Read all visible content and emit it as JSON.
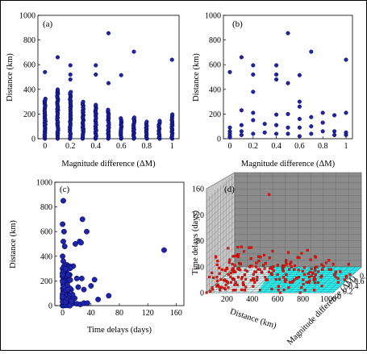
{
  "colors": {
    "marker_fill": "#1f25a8",
    "marker_edge": "#000055",
    "red_marker": "#e8140c",
    "wall_grey": "#8c8c8c",
    "floor_cyan": "#33ffff"
  },
  "chart_data": [
    {
      "type": "scatter",
      "panel_label": "(a)",
      "xlabel": "Magnitude difference (ΔM)",
      "ylabel": "Distance (km)",
      "xlim": [
        0,
        1
      ],
      "ylim": [
        0,
        1000
      ],
      "xticks": [
        "0",
        "0.2",
        "0.4",
        "0.6",
        "0.8",
        "1"
      ],
      "yticks": [
        "0",
        "200",
        "400",
        "600",
        "800",
        "1000"
      ],
      "grid": false,
      "columns": [
        {
          "x": 0.0,
          "max": 330
        },
        {
          "x": 0.1,
          "max": 400
        },
        {
          "x": 0.2,
          "max": 380
        },
        {
          "x": 0.3,
          "max": 300
        },
        {
          "x": 0.4,
          "max": 280
        },
        {
          "x": 0.5,
          "max": 240
        },
        {
          "x": 0.6,
          "max": 170
        },
        {
          "x": 0.7,
          "max": 180
        },
        {
          "x": 0.8,
          "max": 140
        },
        {
          "x": 0.9,
          "max": 150
        },
        {
          "x": 1.0,
          "max": 200
        }
      ],
      "outliers": [
        {
          "x": 0.0,
          "y": 540
        },
        {
          "x": 0.1,
          "y": 660
        },
        {
          "x": 0.2,
          "y": 595
        },
        {
          "x": 0.2,
          "y": 520
        },
        {
          "x": 0.2,
          "y": 480
        },
        {
          "x": 0.4,
          "y": 595
        },
        {
          "x": 0.4,
          "y": 520
        },
        {
          "x": 0.5,
          "y": 855
        },
        {
          "x": 0.5,
          "y": 450
        },
        {
          "x": 0.6,
          "y": 515
        },
        {
          "x": 0.7,
          "y": 705
        },
        {
          "x": 1.0,
          "y": 640
        }
      ]
    },
    {
      "type": "scatter",
      "panel_label": "(b)",
      "xlabel": "Magnitude difference (ΔM)",
      "ylabel": "Distance (km)",
      "xlim": [
        0,
        1
      ],
      "ylim": [
        0,
        1000
      ],
      "xticks": [
        "0",
        "0.2",
        "0.4",
        "0.6",
        "0.8",
        "1"
      ],
      "yticks": [
        "0",
        "200",
        "400",
        "600",
        "800",
        "1000"
      ],
      "grid": false,
      "points": [
        {
          "x": 0.0,
          "y": 540
        },
        {
          "x": 0.0,
          "y": 90
        },
        {
          "x": 0.0,
          "y": 60
        },
        {
          "x": 0.0,
          "y": 40
        },
        {
          "x": 0.0,
          "y": 20
        },
        {
          "x": 0.0,
          "y": 10
        },
        {
          "x": 0.1,
          "y": 660
        },
        {
          "x": 0.1,
          "y": 230
        },
        {
          "x": 0.1,
          "y": 110
        },
        {
          "x": 0.1,
          "y": 60
        },
        {
          "x": 0.1,
          "y": 30
        },
        {
          "x": 0.2,
          "y": 595
        },
        {
          "x": 0.2,
          "y": 520
        },
        {
          "x": 0.2,
          "y": 380
        },
        {
          "x": 0.2,
          "y": 210
        },
        {
          "x": 0.2,
          "y": 150
        },
        {
          "x": 0.2,
          "y": 40
        },
        {
          "x": 0.3,
          "y": 120
        },
        {
          "x": 0.3,
          "y": 50
        },
        {
          "x": 0.4,
          "y": 595
        },
        {
          "x": 0.4,
          "y": 520
        },
        {
          "x": 0.4,
          "y": 480
        },
        {
          "x": 0.4,
          "y": 195
        },
        {
          "x": 0.4,
          "y": 110
        },
        {
          "x": 0.4,
          "y": 40
        },
        {
          "x": 0.5,
          "y": 855
        },
        {
          "x": 0.5,
          "y": 450
        },
        {
          "x": 0.5,
          "y": 200
        },
        {
          "x": 0.5,
          "y": 90
        },
        {
          "x": 0.5,
          "y": 40
        },
        {
          "x": 0.6,
          "y": 515
        },
        {
          "x": 0.6,
          "y": 300
        },
        {
          "x": 0.6,
          "y": 260
        },
        {
          "x": 0.6,
          "y": 160
        },
        {
          "x": 0.6,
          "y": 90
        },
        {
          "x": 0.6,
          "y": 20
        },
        {
          "x": 0.7,
          "y": 705
        },
        {
          "x": 0.7,
          "y": 175
        },
        {
          "x": 0.7,
          "y": 100
        },
        {
          "x": 0.7,
          "y": 40
        },
        {
          "x": 0.8,
          "y": 210
        },
        {
          "x": 0.8,
          "y": 130
        },
        {
          "x": 0.8,
          "y": 60
        },
        {
          "x": 0.9,
          "y": 190
        },
        {
          "x": 0.9,
          "y": 60
        },
        {
          "x": 0.9,
          "y": 30
        },
        {
          "x": 1.0,
          "y": 640
        },
        {
          "x": 1.0,
          "y": 210
        },
        {
          "x": 1.0,
          "y": 50
        },
        {
          "x": 1.0,
          "y": 30
        }
      ]
    },
    {
      "type": "scatter",
      "panel_label": "(c)",
      "xlabel": "Time delays (days)",
      "ylabel": "Distance (km)",
      "xlim": [
        0,
        160
      ],
      "ylim": [
        0,
        1000
      ],
      "xticks": [
        "0",
        "40",
        "80",
        "120",
        "160"
      ],
      "yticks": [
        "0",
        "200",
        "400",
        "600",
        "800",
        "1000"
      ],
      "grid": false,
      "points": [
        {
          "x": 1,
          "y": 850
        },
        {
          "x": 0,
          "y": 660
        },
        {
          "x": 2,
          "y": 600
        },
        {
          "x": 1,
          "y": 520
        },
        {
          "x": 3,
          "y": 480
        },
        {
          "x": 0,
          "y": 400
        },
        {
          "x": 1,
          "y": 360
        },
        {
          "x": 2,
          "y": 320
        },
        {
          "x": 0,
          "y": 300
        },
        {
          "x": 1,
          "y": 280
        },
        {
          "x": 3,
          "y": 250
        },
        {
          "x": 2,
          "y": 220
        },
        {
          "x": 0,
          "y": 200
        },
        {
          "x": 4,
          "y": 190
        },
        {
          "x": 1,
          "y": 170
        },
        {
          "x": 5,
          "y": 150
        },
        {
          "x": 2,
          "y": 140
        },
        {
          "x": 6,
          "y": 120
        },
        {
          "x": 3,
          "y": 100
        },
        {
          "x": 8,
          "y": 90
        },
        {
          "x": 0,
          "y": 80
        },
        {
          "x": 10,
          "y": 70
        },
        {
          "x": 4,
          "y": 60
        },
        {
          "x": 12,
          "y": 40
        },
        {
          "x": 2,
          "y": 30
        },
        {
          "x": 15,
          "y": 20
        },
        {
          "x": 7,
          "y": 10
        },
        {
          "x": 20,
          "y": 15
        },
        {
          "x": 25,
          "y": 10
        },
        {
          "x": 30,
          "y": 20
        },
        {
          "x": 35,
          "y": 20
        },
        {
          "x": 28,
          "y": 700
        },
        {
          "x": 24,
          "y": 520
        },
        {
          "x": 26,
          "y": 510
        },
        {
          "x": 34,
          "y": 600
        },
        {
          "x": 18,
          "y": 500
        },
        {
          "x": 15,
          "y": 320
        },
        {
          "x": 20,
          "y": 220
        },
        {
          "x": 27,
          "y": 220
        },
        {
          "x": 22,
          "y": 150
        },
        {
          "x": 30,
          "y": 130
        },
        {
          "x": 45,
          "y": 210
        },
        {
          "x": 40,
          "y": 160
        },
        {
          "x": 50,
          "y": 50
        },
        {
          "x": 65,
          "y": 80
        },
        {
          "x": 143,
          "y": 450
        },
        {
          "x": 10,
          "y": 250
        },
        {
          "x": 8,
          "y": 200
        },
        {
          "x": 6,
          "y": 330
        },
        {
          "x": 12,
          "y": 130
        },
        {
          "x": 17,
          "y": 60
        },
        {
          "x": 9,
          "y": 40
        },
        {
          "x": 14,
          "y": 90
        }
      ]
    },
    {
      "type": "scatter",
      "panel_label": "(d)",
      "projection": "3d",
      "xlabel": "Distance (km)",
      "ylabel": "Magnitude difference (ΔM)",
      "zlabel": "Time delays (days)",
      "xlim": [
        0,
        1000
      ],
      "ylim": [
        0,
        1
      ],
      "zlim": [
        0,
        160
      ],
      "xticks": [
        "0",
        "200",
        "400",
        "600",
        "800",
        "1000"
      ],
      "yticks": [
        "0",
        "0.2",
        "0.4",
        "0.6",
        "0.8",
        "1"
      ],
      "zticks": [
        "0",
        "40",
        "80",
        "120",
        "160"
      ],
      "grid": true,
      "points": [
        {
          "x": 30,
          "y": 0.0,
          "z": 2
        },
        {
          "x": 80,
          "y": 0.0,
          "z": 10
        },
        {
          "x": 150,
          "y": 0.0,
          "z": 5
        },
        {
          "x": 60,
          "y": 0.1,
          "z": 20
        },
        {
          "x": 120,
          "y": 0.1,
          "z": 3
        },
        {
          "x": 200,
          "y": 0.1,
          "z": 8
        },
        {
          "x": 40,
          "y": 0.2,
          "z": 35
        },
        {
          "x": 100,
          "y": 0.2,
          "z": 12
        },
        {
          "x": 250,
          "y": 0.2,
          "z": 4
        },
        {
          "x": 300,
          "y": 0.3,
          "z": 10
        },
        {
          "x": 180,
          "y": 0.3,
          "z": 25
        },
        {
          "x": 90,
          "y": 0.3,
          "z": 6
        },
        {
          "x": 350,
          "y": 0.4,
          "z": 15
        },
        {
          "x": 220,
          "y": 0.4,
          "z": 5
        },
        {
          "x": 120,
          "y": 0.4,
          "z": 40
        },
        {
          "x": 450,
          "y": 0.5,
          "z": 8
        },
        {
          "x": 280,
          "y": 0.5,
          "z": 20
        },
        {
          "x": 600,
          "y": 0.5,
          "z": 3
        },
        {
          "x": 520,
          "y": 0.6,
          "z": 12
        },
        {
          "x": 380,
          "y": 0.6,
          "z": 6
        },
        {
          "x": 700,
          "y": 0.7,
          "z": 10
        },
        {
          "x": 300,
          "y": 0.7,
          "z": 30
        },
        {
          "x": 650,
          "y": 0.8,
          "z": 5
        },
        {
          "x": 450,
          "y": 0.8,
          "z": 18
        },
        {
          "x": 800,
          "y": 0.9,
          "z": 8
        },
        {
          "x": 550,
          "y": 0.9,
          "z": 25
        },
        {
          "x": 900,
          "y": 1.0,
          "z": 4
        },
        {
          "x": 640,
          "y": 1.0,
          "z": 15
        },
        {
          "x": 500,
          "y": 0.1,
          "z": 60
        },
        {
          "x": 855,
          "y": 0.5,
          "z": 30
        },
        {
          "x": 450,
          "y": 0.2,
          "z": 143
        },
        {
          "x": 700,
          "y": 0.7,
          "z": 28
        },
        {
          "x": 200,
          "y": 0.2,
          "z": 50
        },
        {
          "x": 750,
          "y": 0.3,
          "z": 20
        },
        {
          "x": 850,
          "y": 0.6,
          "z": 12
        },
        {
          "x": 950,
          "y": 0.4,
          "z": 6
        },
        {
          "x": 400,
          "y": 0.9,
          "z": 2
        },
        {
          "x": 600,
          "y": 0.3,
          "z": 35
        },
        {
          "x": 330,
          "y": 0.1,
          "z": 15
        },
        {
          "x": 170,
          "y": 0.8,
          "z": 9
        },
        {
          "x": 260,
          "y": 0.6,
          "z": 22
        },
        {
          "x": 720,
          "y": 0.2,
          "z": 5
        },
        {
          "x": 50,
          "y": 0.5,
          "z": 18
        },
        {
          "x": 110,
          "y": 0.7,
          "z": 7
        }
      ]
    }
  ]
}
